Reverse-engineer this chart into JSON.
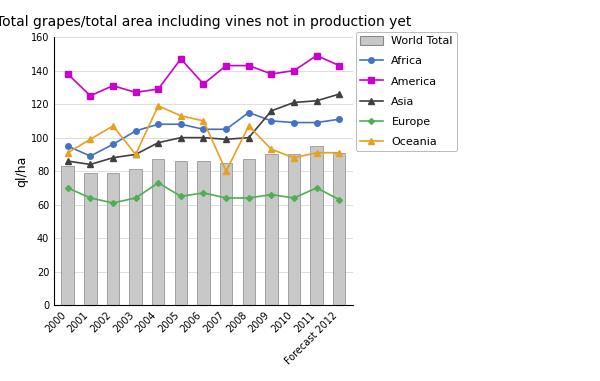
{
  "title": "Total grapes/total area including vines not in production yet",
  "ylabel": "ql/ha",
  "years": [
    "2000",
    "2001",
    "2002",
    "2003",
    "2004",
    "2005",
    "2006",
    "2007",
    "2008",
    "2009",
    "2010",
    "2011",
    "Forecast 2012"
  ],
  "bar_values": [
    83,
    79,
    79,
    81,
    87,
    86,
    86,
    85,
    87,
    90,
    90,
    95,
    91
  ],
  "bar_color": "#c8c8c8",
  "bar_edge_color": "#888888",
  "lines": [
    {
      "name": "Africa",
      "values": [
        95,
        89,
        96,
        104,
        108,
        108,
        105,
        105,
        115,
        110,
        109,
        109,
        111
      ],
      "color": "#4472c4",
      "marker": "o",
      "markersize": 4
    },
    {
      "name": "America",
      "values": [
        138,
        125,
        131,
        127,
        129,
        147,
        132,
        143,
        143,
        138,
        140,
        149,
        143
      ],
      "color": "#cc00cc",
      "marker": "s",
      "markersize": 4
    },
    {
      "name": "Asia",
      "values": [
        86,
        84,
        88,
        90,
        97,
        100,
        100,
        99,
        100,
        116,
        121,
        122,
        126
      ],
      "color": "#404040",
      "marker": "^",
      "markersize": 4
    },
    {
      "name": "Europe",
      "values": [
        70,
        64,
        61,
        64,
        73,
        65,
        67,
        64,
        64,
        66,
        64,
        70,
        63
      ],
      "color": "#4daf50",
      "marker": "D",
      "markersize": 3
    },
    {
      "name": "Oceania",
      "values": [
        91,
        99,
        107,
        90,
        119,
        113,
        110,
        80,
        107,
        93,
        88,
        91,
        91
      ],
      "color": "#e8a020",
      "marker": "^",
      "markersize": 4
    }
  ],
  "ylim": [
    0,
    160
  ],
  "yticks": [
    0,
    20,
    40,
    60,
    80,
    100,
    120,
    140,
    160
  ],
  "background_color": "#ffffff",
  "plot_bg_color": "#ffffff",
  "title_fontsize": 10,
  "tick_fontsize": 7,
  "ylabel_fontsize": 9,
  "legend_fontsize": 8
}
